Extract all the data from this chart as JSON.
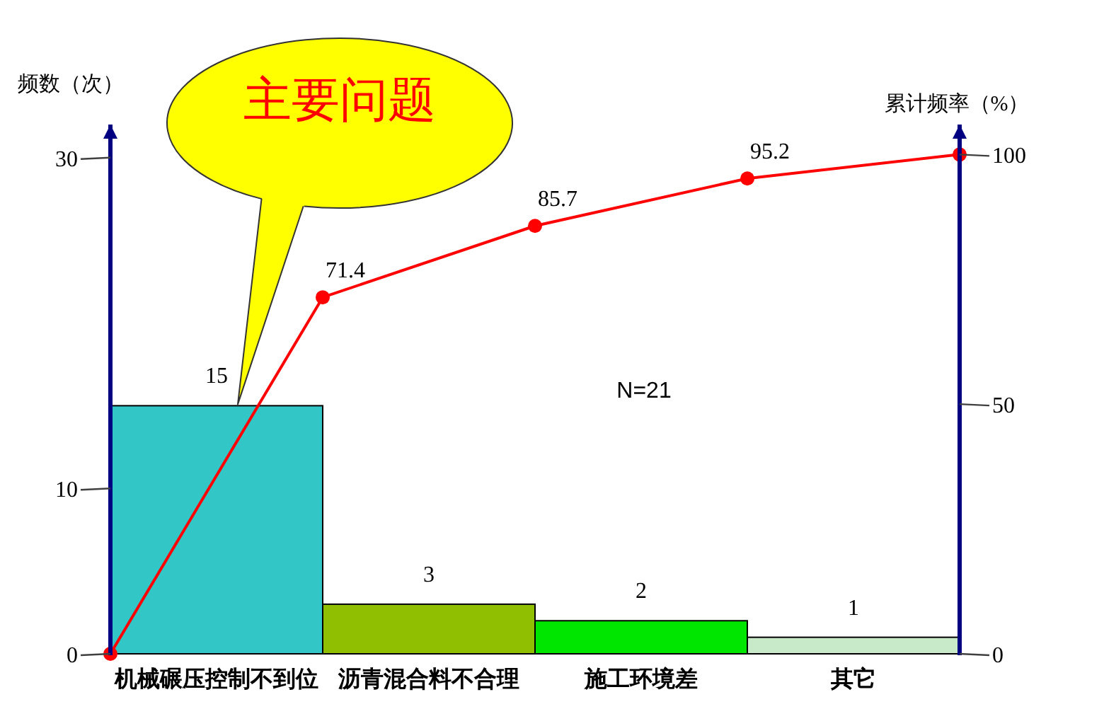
{
  "chart_data": {
    "type": "bar",
    "categories": [
      null,
      "机械碾压控制不到位",
      null,
      "沥青混合料不合理",
      null,
      "施工环境差",
      null,
      "其它",
      null
    ],
    "ylabel": "频数（次）",
    "y2label": "累计频率（%）",
    "ylim": [
      0,
      32
    ],
    "yticks": [
      0,
      10,
      30
    ],
    "y2lim": [
      0,
      106
    ],
    "y2ticks": [
      0,
      50,
      100
    ],
    "marker": "circle",
    "line_style": "solid",
    "series": [
      {
        "colors": [
          null,
          "#33c6c6",
          null,
          "#8fbf00",
          null,
          "#00e600",
          null,
          "#c8eac8",
          null
        ],
        "values": [
          null,
          15,
          null,
          3,
          null,
          2,
          null,
          1,
          null
        ],
        "value_labels": [
          null,
          "15",
          null,
          "3",
          null,
          "2",
          null,
          "1",
          null
        ]
      },
      {
        "type": "line",
        "axis": "y2",
        "color": "#ff0000",
        "values": [
          0,
          null,
          71.4,
          null,
          85.7,
          null,
          95.2,
          null,
          100
        ],
        "value_labels": [
          null,
          null,
          "71.4",
          null,
          "85.7",
          null,
          "95.2",
          null,
          null
        ]
      }
    ],
    "annotations": [
      "主要问题",
      "N=21"
    ]
  }
}
